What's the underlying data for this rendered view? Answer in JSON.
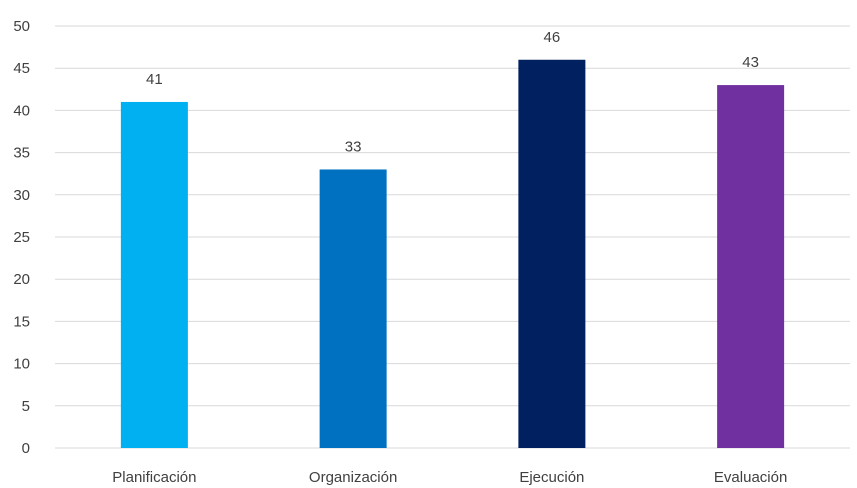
{
  "chart_data": {
    "type": "bar",
    "title": "",
    "xlabel": "",
    "ylabel": "",
    "categories": [
      "Planificación",
      "Organización",
      "Ejecución",
      "Evaluación"
    ],
    "values": [
      41,
      33,
      46,
      43
    ],
    "data_labels": [
      "41",
      "33",
      "46",
      "43"
    ],
    "colors": [
      "#00B0F0",
      "#0070C0",
      "#002060",
      "#7030A0"
    ],
    "ylim": [
      0,
      50
    ],
    "yticks": [
      0,
      5,
      10,
      15,
      20,
      25,
      30,
      35,
      40,
      45,
      50
    ],
    "ytick_labels": [
      "0",
      "5",
      "10",
      "15",
      "20",
      "25",
      "30",
      "35",
      "40",
      "45",
      "50"
    ],
    "grid": true,
    "legend": "none"
  }
}
